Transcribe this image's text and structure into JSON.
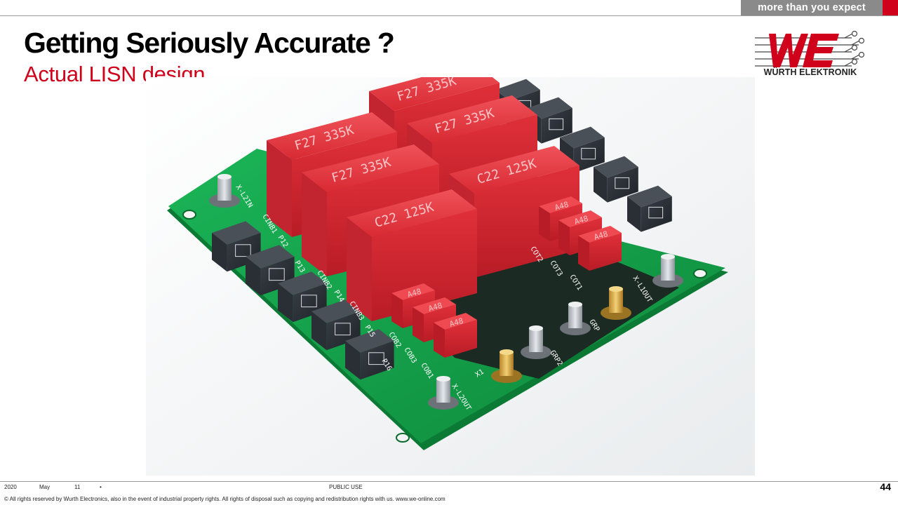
{
  "header": {
    "tagline": "more than you expect",
    "title": "Getting Seriously Accurate ?",
    "subtitle": "Actual LISN design"
  },
  "logo": {
    "mark": "WE",
    "text": "WÜRTH ELEKTRONIK"
  },
  "photo": {
    "capacitor_labels": [
      "F27 335K",
      "F27 335K",
      "F27 335K",
      "F27 335K",
      "C22 125K",
      "C22 125K"
    ],
    "small_capacitor_label": "A48",
    "silkscreen": {
      "x_l2in": "X-L2IN",
      "x_l1out": "X-L1OUT",
      "x_l2out": "X-L2OUT",
      "cinb1": "CINB1",
      "cinb2": "CINB2",
      "cinb3": "CINB3",
      "cob2": "COB2",
      "cob3": "COB3",
      "cob1": "COB1",
      "cot1": "COT1",
      "cot2": "COT2",
      "cot3": "COT3",
      "x1": "X1",
      "grp": "GRP",
      "grp2": "GRP2",
      "p12": "P12",
      "p13": "P13",
      "p14": "P14",
      "p15": "P15",
      "p16": "P16"
    },
    "colors": {
      "pcb": "#12a24a",
      "capacitor": "#e0303a",
      "inductor": "#2b2f36"
    }
  },
  "footer": {
    "year": "2020",
    "month": "May",
    "day": "11",
    "bullet": "•",
    "classification": "PUBLIC USE",
    "page": "44",
    "copyright": "© All rights reserved by Wurth Electronics, also in the event of industrial property rights. All rights of disposal such as copying and redistribution rights with us. www.we-online.com"
  },
  "colors": {
    "brand_red": "#d0021b",
    "tagline_gray": "#8a8a8a"
  }
}
